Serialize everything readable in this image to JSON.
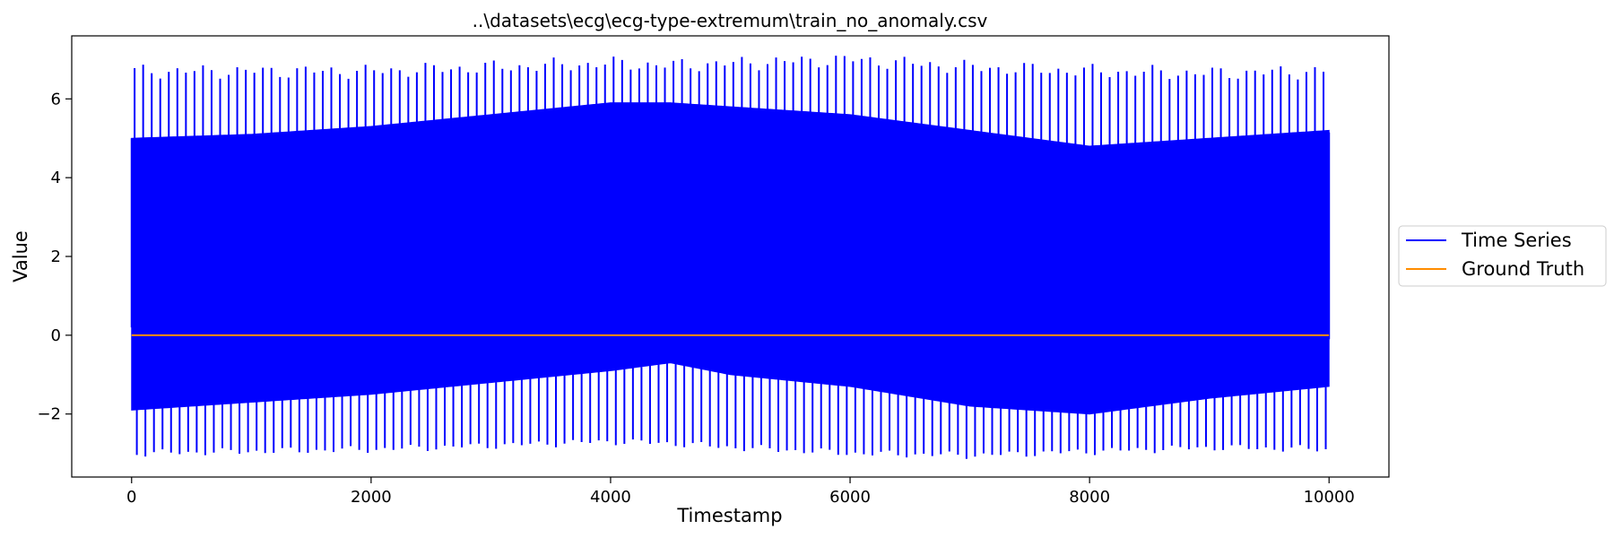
{
  "chart_data": {
    "type": "line",
    "title": "..\\datasets\\ecg\\ecg-type-extremum\\train_no_anomaly.csv",
    "xlabel": "Timestamp",
    "ylabel": "Value",
    "xlim": [
      -500,
      10500
    ],
    "ylim": [
      -3.6,
      7.6
    ],
    "x_ticks": [
      0,
      2000,
      4000,
      6000,
      8000,
      10000
    ],
    "x_tick_labels": [
      "0",
      "2000",
      "4000",
      "6000",
      "8000",
      "10000"
    ],
    "y_ticks": [
      -2,
      0,
      2,
      4,
      6
    ],
    "y_tick_labels": [
      "−2",
      "0",
      "2",
      "4",
      "6"
    ],
    "grid": false,
    "legend_placement": "center-right-outside",
    "series": [
      {
        "name": "Time Series",
        "color": "#0000ff",
        "x_range": [
          0,
          10000
        ],
        "beat_count": 140,
        "envelope": {
          "x": [
            0,
            1000,
            2000,
            3000,
            4000,
            4500,
            5000,
            6000,
            7000,
            8000,
            9000,
            10000
          ],
          "r_peak": [
            6.7,
            6.7,
            6.7,
            6.8,
            6.9,
            6.85,
            6.9,
            7.0,
            6.8,
            6.7,
            6.65,
            6.7
          ],
          "s_trough": [
            -3.0,
            -2.95,
            -2.9,
            -2.8,
            -2.7,
            -2.75,
            -2.85,
            -3.0,
            -3.05,
            -2.95,
            -2.85,
            -2.9
          ],
          "upper_fill": [
            5.0,
            5.1,
            5.3,
            5.6,
            5.9,
            5.9,
            5.8,
            5.6,
            5.2,
            4.8,
            5.0,
            5.2
          ],
          "lower_fill": [
            -1.9,
            -1.7,
            -1.5,
            -1.2,
            -0.9,
            -0.7,
            -1.0,
            -1.3,
            -1.8,
            -2.0,
            -1.6,
            -1.3
          ]
        }
      },
      {
        "name": "Ground Truth",
        "color": "#ff8c00",
        "x": [
          0,
          10000
        ],
        "values": [
          0,
          0
        ]
      }
    ]
  }
}
